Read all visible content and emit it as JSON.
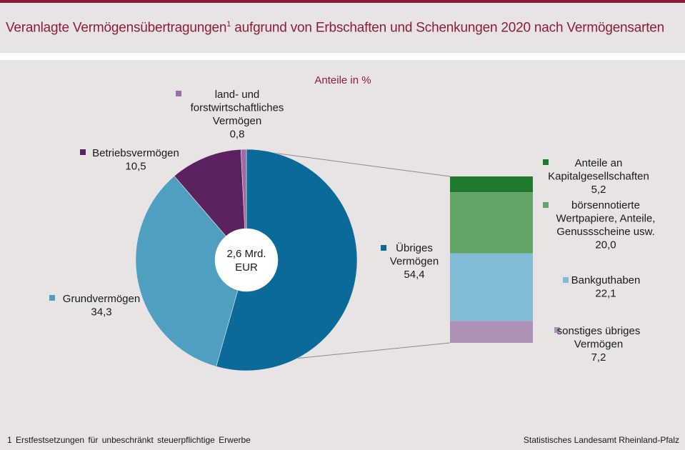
{
  "header": {
    "title_pre": "Veranlagte Vermögensübertragungen",
    "title_sup": "1",
    "title_post": " aufgrund von Erbschaften und Schenkungen 2020 nach Vermögensarten"
  },
  "footer": {
    "footnote": "1 Erstfestsetzungen für unbeschränkt steuerpflichtige Erwerbe",
    "source": "Statistisches Landesamt Rheinland-Pfalz"
  },
  "chart_data": {
    "type": "pie",
    "subtitle": "Anteile in %",
    "center_label": [
      "2,6 Mrd.",
      "EUR"
    ],
    "donut": {
      "slices": [
        {
          "label_lines": [
            "Übriges",
            "Vermögen"
          ],
          "value": 54.4,
          "value_text": "54,4",
          "color": "#0a6b9a"
        },
        {
          "label_lines": [
            "Grundvermögen"
          ],
          "value": 34.3,
          "value_text": "34,3",
          "color": "#4fa0c0"
        },
        {
          "label_lines": [
            "Betriebsvermögen"
          ],
          "value": 10.5,
          "value_text": "10,5",
          "color": "#5b2160"
        },
        {
          "label_lines": [
            "land- und",
            "forstwirtschaftliches",
            "Vermögen"
          ],
          "value": 0.8,
          "value_text": "0,8",
          "color": "#9a6ea4"
        }
      ]
    },
    "breakdown": {
      "of": "Übriges Vermögen",
      "segments": [
        {
          "label_lines": [
            "Anteile an",
            "Kapitalgesellschaften"
          ],
          "value": 5.2,
          "value_text": "5,2",
          "color": "#1f7a2d"
        },
        {
          "label_lines": [
            "börsennotierte",
            "Wertpapiere, Anteile,",
            "Genussscheine usw."
          ],
          "value": 20.0,
          "value_text": "20,0",
          "color": "#62a465"
        },
        {
          "label_lines": [
            "Bankguthaben"
          ],
          "value": 22.1,
          "value_text": "22,1",
          "color": "#82bcd7"
        },
        {
          "label_lines": [
            "sonstiges übriges",
            "Vermögen"
          ],
          "value": 7.2,
          "value_text": "7,2",
          "color": "#ae92b5"
        }
      ]
    }
  }
}
